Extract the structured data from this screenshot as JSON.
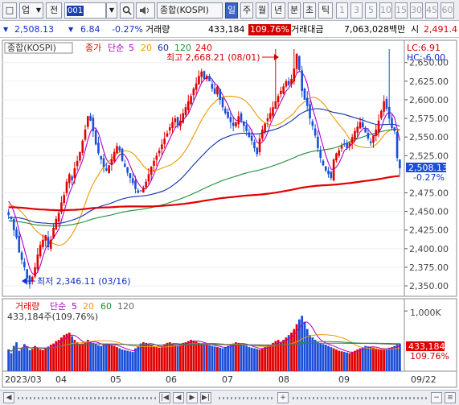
{
  "toolbar": {
    "left_box_glyph": "□",
    "market_select": "업",
    "jeon_label": "전",
    "code_value": "001",
    "kind_select": "종합(KOSPI)",
    "period_tabs": [
      "일",
      "주",
      "월",
      "년",
      "분",
      "초",
      "틱"
    ],
    "interval_buttons": [
      "1",
      "3",
      "5",
      "10",
      "15",
      "30",
      "45",
      "60"
    ]
  },
  "quote": {
    "price": "2,508.13",
    "direction": "▼",
    "change": "6.84",
    "change_rate": "-0.27%",
    "volume_label": "거래량",
    "volume": "433,184",
    "volume_ratio": "109.76%",
    "amount_label": "거래대금",
    "amount": "7,063,028백만",
    "prev_label": "시",
    "prev": "2,491.4"
  },
  "chart": {
    "price_legend": {
      "name": "종합(KOSPI)",
      "close_label": "종가",
      "ma_label": "단순",
      "ma_periods": [
        "5",
        "20",
        "60",
        "120",
        "240"
      ],
      "ma_colors": [
        "#b000c8",
        "#ee9a00",
        "#1030a8",
        "#1f8f35",
        "#e30000"
      ]
    },
    "lc_label": "LC:6.91",
    "hc_label": "HC:-6.00",
    "high_annotation": "최고 2,668.21 (08/01)",
    "low_annotation": "최저 2,346.11 (03/16)",
    "price_ticks": [
      "2,650.00",
      "2,625.00",
      "2,600.00",
      "2,575.00",
      "2,550.00",
      "2,525.00",
      "2,475.00",
      "2,450.00",
      "2,425.00",
      "2,400.00",
      "2,375.00",
      "2,350.00"
    ],
    "current_price_tag": "2,508.13",
    "current_rate_tag": "-0.27%",
    "volume_legend": {
      "name": "거래량",
      "ma_label": "단순",
      "ma_periods": [
        "5",
        "20",
        "60",
        "120"
      ],
      "ma_colors": [
        "#b000c8",
        "#ee9a00",
        "#1f8f35",
        "#666666"
      ],
      "value": "433,184주(109.76%)"
    },
    "volume_ticks": [
      "1,000K"
    ],
    "volume_tag": "433,184",
    "volume_rate_tag": "109.76%",
    "date_labels": [
      "2023/03",
      "04",
      "05",
      "06",
      "07",
      "08",
      "09"
    ],
    "date_tag": "09/22",
    "up_color": "#e00000",
    "down_color": "#1b4fd8"
  },
  "chart_data": {
    "type": "candlestick",
    "title": "종합(KOSPI)",
    "x_range": [
      "2023/03",
      "09/22"
    ],
    "ylim": [
      2336,
      2680
    ],
    "high": {
      "value": 2668.21,
      "date": "08/01"
    },
    "low": {
      "value": 2346.11,
      "date": "03/16"
    },
    "close_path": [
      2445,
      2440,
      2425,
      2415,
      2395,
      2385,
      2375,
      2360,
      2352,
      2362,
      2375,
      2392,
      2405,
      2412,
      2418,
      2402,
      2412,
      2428,
      2440,
      2448,
      2462,
      2472,
      2490,
      2500,
      2492,
      2508,
      2518,
      2530,
      2545,
      2560,
      2578,
      2572,
      2558,
      2540,
      2528,
      2520,
      2510,
      2505,
      2512,
      2520,
      2530,
      2538,
      2532,
      2518,
      2510,
      2502,
      2495,
      2488,
      2480,
      2475,
      2478,
      2482,
      2490,
      2500,
      2510,
      2518,
      2525,
      2532,
      2540,
      2548,
      2555,
      2563,
      2570,
      2575,
      2565,
      2572,
      2582,
      2590,
      2598,
      2605,
      2615,
      2622,
      2632,
      2638,
      2628,
      2632,
      2625,
      2615,
      2608,
      2618,
      2600,
      2590,
      2582,
      2576,
      2570,
      2565,
      2570,
      2578,
      2572,
      2565,
      2558,
      2550,
      2545,
      2535,
      2527,
      2548,
      2560,
      2568,
      2575,
      2582,
      2590,
      2598,
      2605,
      2612,
      2618,
      2625,
      2620,
      2628,
      2642,
      2662,
      2640,
      2612,
      2600,
      2592,
      2575,
      2565,
      2552,
      2535,
      2522,
      2512,
      2505,
      2500,
      2495,
      2520,
      2528,
      2532,
      2538,
      2540,
      2535,
      2542,
      2550,
      2558,
      2564,
      2570,
      2563,
      2556,
      2548,
      2542,
      2552,
      2560,
      2572,
      2585,
      2598,
      2588,
      2575,
      2562,
      2558,
      2522,
      2508
    ],
    "volume_path_k": [
      360,
      300,
      420,
      480,
      340,
      380,
      450,
      410,
      350,
      370,
      420,
      390,
      360,
      350,
      380,
      410,
      440,
      460,
      500,
      520,
      560,
      600,
      620,
      640,
      580,
      520,
      480,
      440,
      460,
      490,
      520,
      500,
      470,
      450,
      430,
      420,
      440,
      460,
      450,
      430,
      420,
      400,
      380,
      360,
      350,
      340,
      330,
      320,
      380,
      420,
      460,
      480,
      470,
      450,
      430,
      410,
      400,
      390,
      420,
      450,
      470,
      480,
      460,
      440,
      430,
      450,
      470,
      480,
      500,
      520,
      510,
      490,
      470,
      460,
      450,
      440,
      430,
      420,
      410,
      400,
      390,
      380,
      400,
      420,
      440,
      460,
      480,
      470,
      450,
      430,
      420,
      400,
      390,
      380,
      370,
      360,
      380,
      400,
      420,
      440,
      470,
      500,
      520,
      480,
      520,
      560,
      600,
      640,
      700,
      780,
      860,
      920,
      820,
      700,
      600,
      560,
      520,
      480,
      460,
      450,
      440,
      420,
      400,
      380,
      360,
      340,
      330,
      320,
      310,
      300,
      320,
      340,
      360,
      380,
      400,
      420,
      410,
      400,
      390,
      380,
      370,
      360,
      370,
      380,
      390,
      400,
      420,
      440,
      460,
      433
    ],
    "volume_ylim": [
      0,
      1150
    ]
  }
}
